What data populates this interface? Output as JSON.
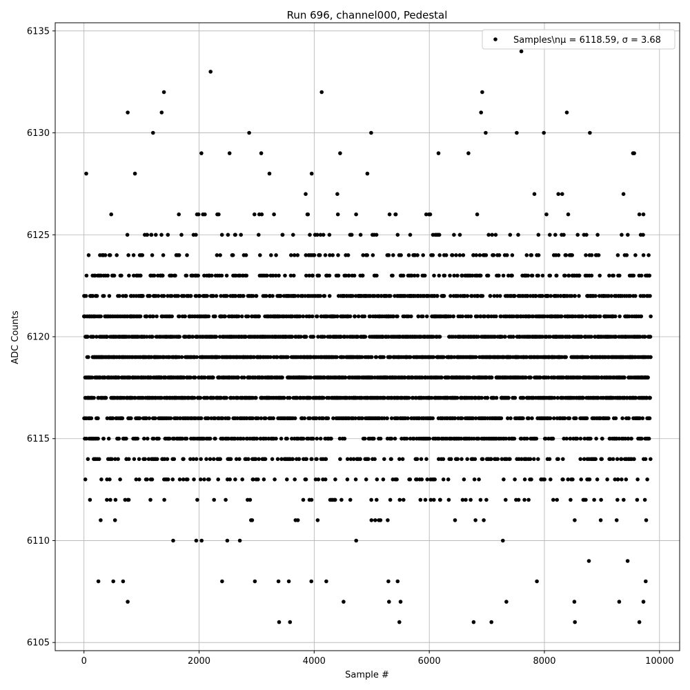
{
  "chart_data": {
    "type": "scatter",
    "title": "Run 696, channel000, Pedestal",
    "xlabel": "Sample #",
    "ylabel": "ADC Counts",
    "xlim": [
      -500,
      10350
    ],
    "ylim": [
      6104.6,
      6135.4
    ],
    "xticks": [
      0,
      2000,
      4000,
      6000,
      8000,
      10000
    ],
    "yticks": [
      6105,
      6110,
      6115,
      6120,
      6125,
      6130,
      6135
    ],
    "grid": true,
    "legend": {
      "position": "top-right",
      "label": "Samples\\nμ = 6118.59, σ = 3.68"
    },
    "series": [
      {
        "name": "Samples\\nμ = 6118.59, σ = 3.68",
        "color": "#000000",
        "n_samples": 9850,
        "mean": 6118.59,
        "sigma": 3.68,
        "points": [
          [
            40,
            6128
          ],
          [
            760,
            6131
          ],
          [
            1200,
            6130
          ],
          [
            1350,
            6131
          ],
          [
            1390,
            6132
          ],
          [
            2200,
            6133
          ],
          [
            2870,
            6130
          ],
          [
            4130,
            6132
          ],
          [
            4990,
            6130
          ],
          [
            6900,
            6131
          ],
          [
            6920,
            6132
          ],
          [
            6980,
            6130
          ],
          [
            7520,
            6130
          ],
          [
            7600,
            6134
          ],
          [
            7990,
            6130
          ],
          [
            8390,
            6131
          ],
          [
            8790,
            6130
          ],
          [
            9540,
            6129
          ],
          [
            9560,
            6129
          ],
          [
            2040,
            6129
          ],
          [
            2530,
            6129
          ],
          [
            3080,
            6129
          ],
          [
            4450,
            6129
          ],
          [
            6680,
            6129
          ],
          [
            6160,
            6129
          ],
          [
            760,
            6107
          ],
          [
            3390,
            6106
          ],
          [
            3580,
            6106
          ],
          [
            5480,
            6106
          ],
          [
            6770,
            6106
          ],
          [
            7080,
            6106
          ],
          [
            8530,
            6106
          ],
          [
            9650,
            6106
          ],
          [
            4510,
            6107
          ],
          [
            5300,
            6107
          ],
          [
            5500,
            6107
          ],
          [
            7340,
            6107
          ],
          [
            8520,
            6107
          ],
          [
            9300,
            6107
          ],
          [
            9720,
            6107
          ],
          [
            250,
            6108
          ],
          [
            510,
            6108
          ],
          [
            680,
            6108
          ],
          [
            2400,
            6108
          ],
          [
            2970,
            6108
          ],
          [
            3380,
            6108
          ],
          [
            3560,
            6108
          ],
          [
            3950,
            6108
          ],
          [
            4210,
            6108
          ],
          [
            5290,
            6108
          ],
          [
            5450,
            6108
          ],
          [
            7870,
            6108
          ],
          [
            9760,
            6108
          ]
        ]
      }
    ]
  }
}
